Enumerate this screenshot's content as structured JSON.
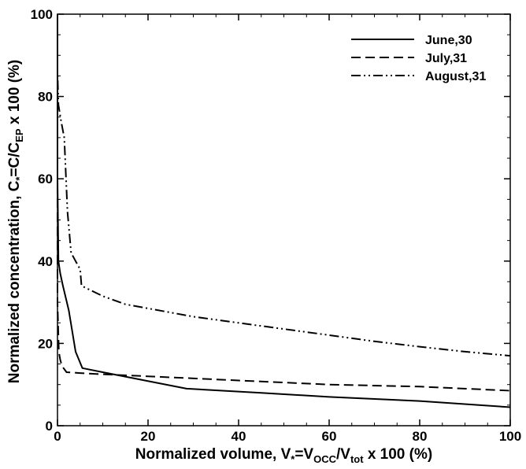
{
  "chart_data": {
    "type": "line",
    "xlabel": {
      "parts": [
        {
          "t": "Normalized volume, V",
          "s": "n"
        },
        {
          "t": "*",
          "s": "sub"
        },
        {
          "t": "=V",
          "s": "n"
        },
        {
          "t": "OCC",
          "s": "sub"
        },
        {
          "t": "/V",
          "s": "n"
        },
        {
          "t": "tot",
          "s": "sub"
        },
        {
          "t": " x 100 (%)",
          "s": "n"
        }
      ]
    },
    "ylabel": {
      "parts": [
        {
          "t": "Normalized concentration, C",
          "s": "n"
        },
        {
          "t": "*",
          "s": "sub"
        },
        {
          "t": "=C/C",
          "s": "n"
        },
        {
          "t": "EP",
          "s": "sub"
        },
        {
          "t": " x 100 (%)",
          "s": "n"
        }
      ]
    },
    "xlim": [
      0,
      100
    ],
    "ylim": [
      0,
      100
    ],
    "xticks": [
      0,
      20,
      40,
      60,
      80,
      100
    ],
    "yticks": [
      0,
      20,
      40,
      60,
      80,
      100
    ],
    "grid": false,
    "legend_position": "top-right",
    "series": [
      {
        "name": "June,30",
        "style": "solid",
        "color": "#000000",
        "x": [
          0,
          0,
          0,
          0.2,
          0.6,
          1.2,
          2.5,
          4,
          5.5,
          10,
          28.5,
          45,
          60,
          80,
          100
        ],
        "y": [
          100,
          80,
          60,
          40,
          37,
          34,
          28,
          18,
          14,
          13,
          9,
          8,
          7,
          6,
          4.5
        ]
      },
      {
        "name": "July,31",
        "style": "dashed",
        "color": "#000000",
        "x": [
          0,
          0,
          0,
          0.3,
          0.6,
          1,
          2,
          5,
          10,
          20,
          40,
          60,
          80,
          100
        ],
        "y": [
          100,
          60,
          30,
          18,
          16,
          14.5,
          13,
          12.8,
          12.5,
          12,
          11,
          10,
          9.5,
          8.5
        ]
      },
      {
        "name": "August,31",
        "style": "dashdotdot",
        "color": "#000000",
        "x": [
          0,
          0,
          0.2,
          0.8,
          1.5,
          2.2,
          3,
          4,
          5,
          5.3,
          10,
          15,
          20,
          30,
          40,
          50,
          60,
          70,
          80,
          90,
          100
        ],
        "y": [
          100,
          86,
          78,
          74,
          70,
          52,
          42,
          40,
          38,
          34,
          31.5,
          29.5,
          28.5,
          26.5,
          25,
          23.5,
          22,
          20.5,
          19.2,
          18,
          17
        ]
      }
    ]
  }
}
